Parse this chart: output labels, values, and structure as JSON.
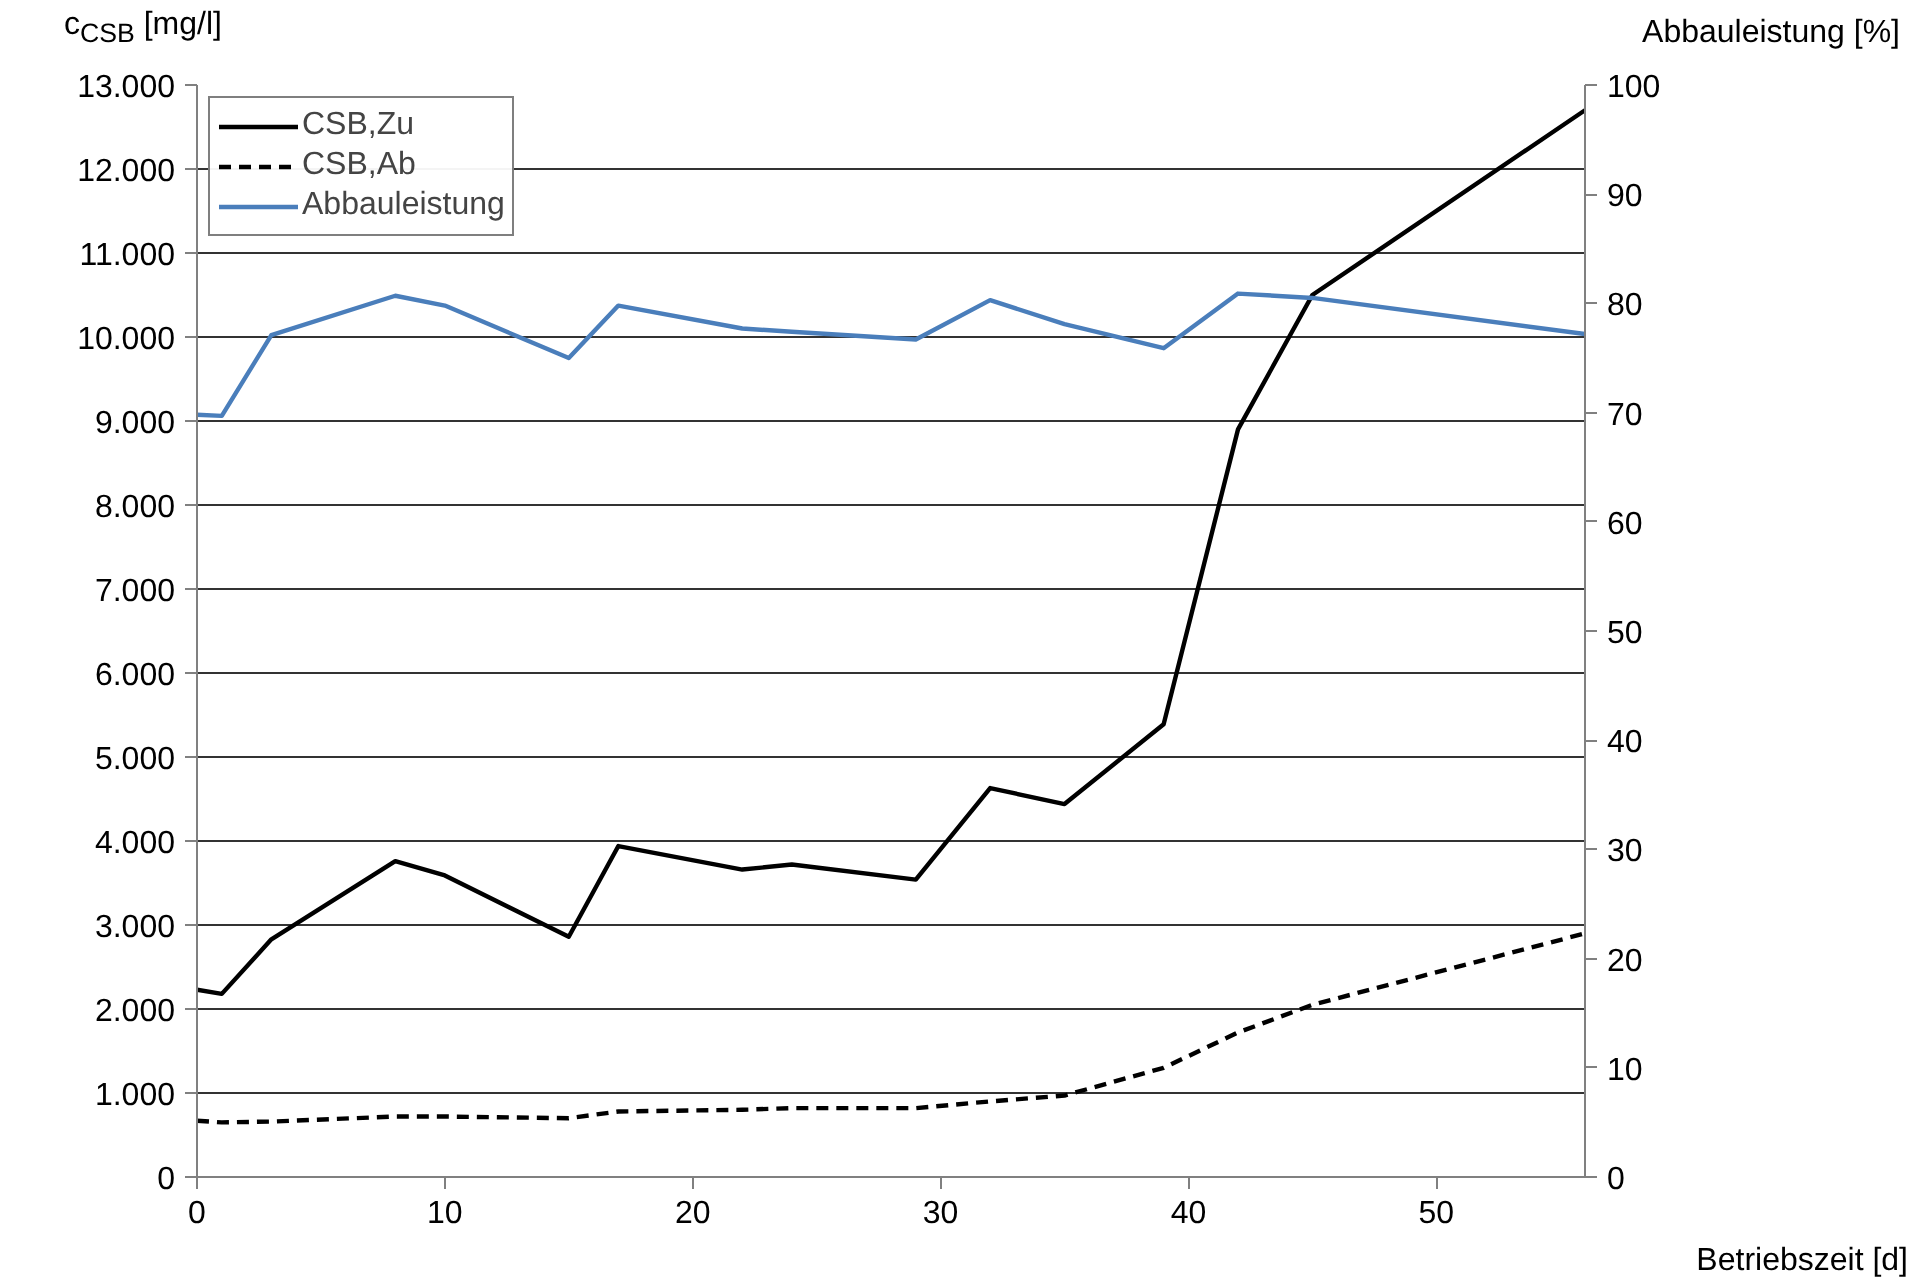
{
  "chart_data": {
    "type": "line",
    "ylabel": "c$_{CSB}$ [mg/l]",
    "y2label": "Abbauleistung [%]",
    "xlabel": "Betriebszeit [d]",
    "x": [
      0,
      1,
      3,
      8,
      10,
      15,
      17,
      22,
      24,
      29,
      32,
      35,
      39,
      42,
      45,
      56
    ],
    "xlim": [
      0,
      56
    ],
    "xticks": [
      0,
      10,
      20,
      30,
      40,
      50
    ],
    "ylim": [
      0,
      13000
    ],
    "yticks": [
      {
        "value": 0,
        "label": "0"
      },
      {
        "value": 1000,
        "label": "1.000"
      },
      {
        "value": 2000,
        "label": "2.000"
      },
      {
        "value": 3000,
        "label": "3.000"
      },
      {
        "value": 4000,
        "label": "4.000"
      },
      {
        "value": 5000,
        "label": "5.000"
      },
      {
        "value": 6000,
        "label": "6.000"
      },
      {
        "value": 7000,
        "label": "7.000"
      },
      {
        "value": 8000,
        "label": "8.000"
      },
      {
        "value": 9000,
        "label": "9.000"
      },
      {
        "value": 10000,
        "label": "10.000"
      },
      {
        "value": 11000,
        "label": "11.000"
      },
      {
        "value": 12000,
        "label": "12.000"
      },
      {
        "value": 13000,
        "label": "13.000"
      }
    ],
    "y2lim": [
      0,
      100
    ],
    "y2ticks": [
      0,
      10,
      20,
      30,
      40,
      50,
      60,
      70,
      80,
      90,
      100
    ],
    "grid": "y",
    "legend": "top left",
    "series": [
      {
        "name": "CSB,Zu",
        "color": "#000000",
        "line_style": "solid",
        "values": [
          2230,
          2180,
          2830,
          3760,
          3590,
          2860,
          3940,
          3660,
          3720,
          3540,
          4630,
          4440,
          5390,
          8900,
          10500,
          12700
        ]
      },
      {
        "name": "CSB,Ab",
        "color": "#000000",
        "line_style": "dashed",
        "values": [
          670,
          650,
          660,
          720,
          720,
          700,
          780,
          800,
          820,
          820,
          900,
          970,
          1300,
          1720,
          2050,
          2900
        ]
      },
      {
        "name": "Abbauleistung",
        "color": "#4a7ebb",
        "line_style": "solid",
        "axis": "y2",
        "values": [
          69.8,
          69.7,
          77.1,
          80.7,
          79.8,
          75.0,
          79.8,
          77.7,
          77.4,
          76.7,
          80.3,
          78.1,
          75.9,
          80.9,
          80.5,
          77.2
        ]
      }
    ]
  }
}
